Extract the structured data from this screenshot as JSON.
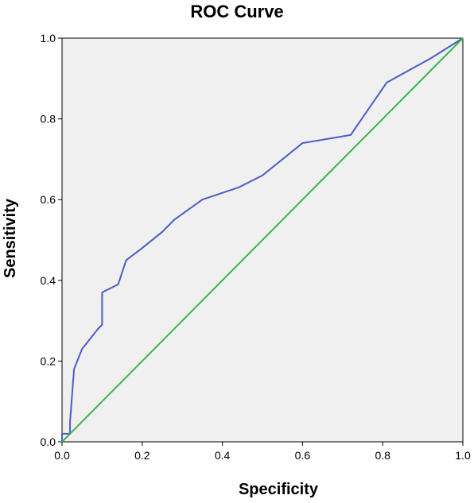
{
  "chart_data": {
    "type": "line",
    "title": "ROC Curve",
    "xlabel": "Specificity",
    "ylabel": "Sensitivity",
    "xlim": [
      0.0,
      1.0
    ],
    "ylim": [
      0.0,
      1.0
    ],
    "x_ticks": [
      "0.0",
      "0.2",
      "0.4",
      "0.6",
      "0.8",
      "1.0"
    ],
    "y_ticks": [
      "0.0",
      "0.2",
      "0.4",
      "0.6",
      "0.8",
      "1.0"
    ],
    "grid": false,
    "background_color": "#f0f0f0",
    "series": [
      {
        "color": "#4a5cc5",
        "x": [
          0.0,
          0.0,
          0.02,
          0.02,
          0.03,
          0.05,
          0.09,
          0.1,
          0.1,
          0.14,
          0.16,
          0.2,
          0.25,
          0.28,
          0.35,
          0.44,
          0.5,
          0.6,
          0.72,
          0.81,
          0.92,
          1.0
        ],
        "y": [
          0.0,
          0.02,
          0.02,
          0.05,
          0.18,
          0.23,
          0.28,
          0.29,
          0.37,
          0.39,
          0.45,
          0.48,
          0.52,
          0.55,
          0.6,
          0.63,
          0.66,
          0.74,
          0.76,
          0.89,
          0.95,
          1.0
        ]
      },
      {
        "color": "#3cb44b",
        "x": [
          0.0,
          1.0
        ],
        "y": [
          0.0,
          1.0
        ]
      }
    ]
  }
}
